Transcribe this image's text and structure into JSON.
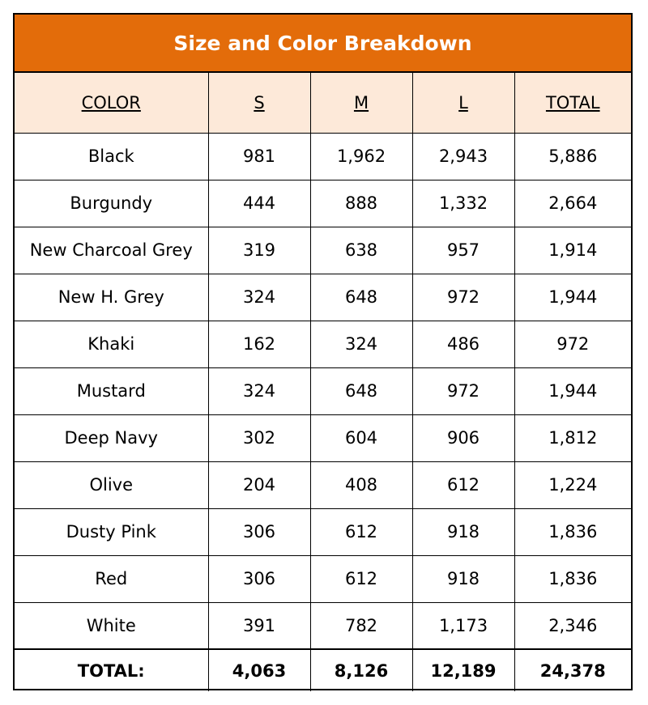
{
  "title": "Size and Color Breakdown",
  "colors": {
    "title_bg": "#e36c0a",
    "title_text": "#ffffff",
    "header_bg": "#fde9d9",
    "border": "#000000"
  },
  "headers": [
    "COLOR",
    "S",
    "M",
    "L",
    "TOTAL"
  ],
  "rows": [
    [
      "Black",
      "981",
      "1,962",
      "2,943",
      "5,886"
    ],
    [
      "Burgundy",
      "444",
      "888",
      "1,332",
      "2,664"
    ],
    [
      "New Charcoal Grey",
      "319",
      "638",
      "957",
      "1,914"
    ],
    [
      "New H. Grey",
      "324",
      "648",
      "972",
      "1,944"
    ],
    [
      "Khaki",
      "162",
      "324",
      "486",
      "972"
    ],
    [
      "Mustard",
      "324",
      "648",
      "972",
      "1,944"
    ],
    [
      "Deep Navy",
      "302",
      "604",
      "906",
      "1,812"
    ],
    [
      "Olive",
      "204",
      "408",
      "612",
      "1,224"
    ],
    [
      "Dusty Pink",
      "306",
      "612",
      "918",
      "1,836"
    ],
    [
      "Red",
      "306",
      "612",
      "918",
      "1,836"
    ],
    [
      "White",
      "391",
      "782",
      "1,173",
      "2,346"
    ]
  ],
  "totals": [
    "TOTAL:",
    "4,063",
    "8,126",
    "12,189",
    "24,378"
  ]
}
